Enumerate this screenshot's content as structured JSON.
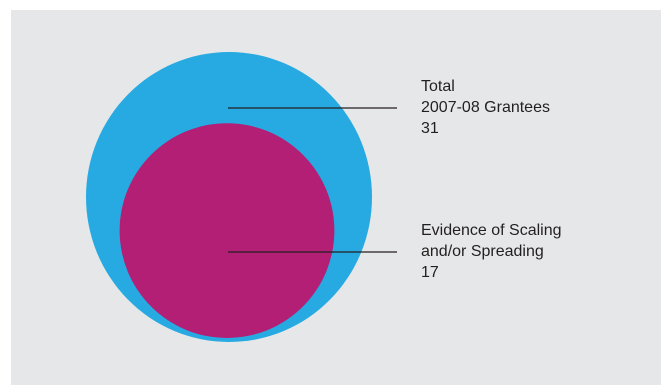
{
  "colors": {
    "panel_background": "#e6e7e8",
    "outer_circle": "#27aae1",
    "inner_circle": "#b21f75",
    "leader_line": "#231f20",
    "text": "#231f20"
  },
  "chart_data": {
    "type": "nested-circle",
    "title": "",
    "series": [
      {
        "key": "total",
        "label_lines": [
          "Total",
          "2007-08 Grantees"
        ],
        "value": 31
      },
      {
        "key": "scaling",
        "label_lines": [
          "Evidence of Scaling",
          "and/or Spreading"
        ],
        "value": 17
      }
    ]
  }
}
